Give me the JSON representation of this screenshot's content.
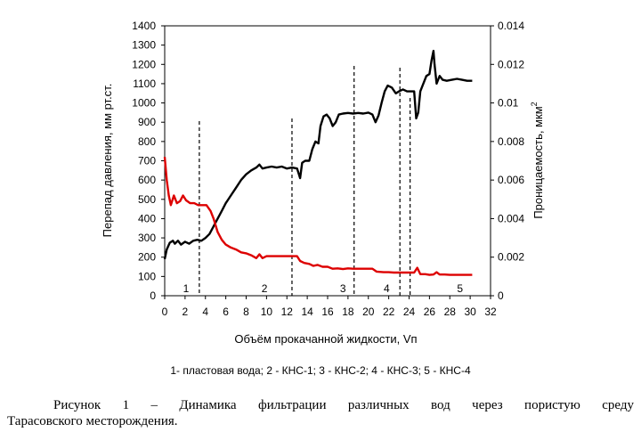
{
  "chart_data": {
    "type": "line",
    "xlabel": "Объём прокачанной жидкости, Vп",
    "ylabel_left": "Перепад давления, мм рт.ст.",
    "ylabel_right": "Проницаемость, мкм",
    "ylabel_right_superscript": "2",
    "xlim": [
      0,
      32
    ],
    "ylim_left": [
      0,
      1400
    ],
    "ylim_right": [
      0,
      0.014
    ],
    "x_ticks": [
      "0",
      "2",
      "4",
      "6",
      "8",
      "10",
      "12",
      "14",
      "16",
      "18",
      "20",
      "22",
      "24",
      "26",
      "28",
      "30",
      "32"
    ],
    "y_left_ticks": [
      "0",
      "100",
      "200",
      "300",
      "400",
      "500",
      "600",
      "700",
      "800",
      "900",
      "1000",
      "1100",
      "1200",
      "1300",
      "1400"
    ],
    "y_right_ticks": [
      "0",
      "0.002",
      "0.004",
      "0.006",
      "0.008",
      "0.01",
      "0.012",
      "0.014"
    ],
    "grid": false,
    "series": [
      {
        "axis": "left",
        "color": "#000000",
        "points": [
          [
            0,
            190
          ],
          [
            0.2,
            240
          ],
          [
            0.5,
            275
          ],
          [
            0.8,
            285
          ],
          [
            1.0,
            270
          ],
          [
            1.3,
            285
          ],
          [
            1.6,
            265
          ],
          [
            2.0,
            280
          ],
          [
            2.4,
            270
          ],
          [
            2.8,
            285
          ],
          [
            3.2,
            290
          ],
          [
            3.6,
            285
          ],
          [
            4.0,
            300
          ],
          [
            4.4,
            320
          ],
          [
            4.8,
            360
          ],
          [
            5.2,
            400
          ],
          [
            5.6,
            440
          ],
          [
            6.0,
            480
          ],
          [
            6.5,
            520
          ],
          [
            7.0,
            560
          ],
          [
            7.5,
            600
          ],
          [
            8.0,
            630
          ],
          [
            8.5,
            650
          ],
          [
            9.0,
            665
          ],
          [
            9.3,
            680
          ],
          [
            9.6,
            660
          ],
          [
            10.0,
            665
          ],
          [
            10.5,
            670
          ],
          [
            11.0,
            665
          ],
          [
            11.5,
            670
          ],
          [
            12.0,
            660
          ],
          [
            12.5,
            665
          ],
          [
            13.0,
            660
          ],
          [
            13.3,
            610
          ],
          [
            13.5,
            690
          ],
          [
            13.8,
            700
          ],
          [
            14.2,
            700
          ],
          [
            14.5,
            760
          ],
          [
            14.8,
            800
          ],
          [
            15.1,
            790
          ],
          [
            15.3,
            880
          ],
          [
            15.6,
            930
          ],
          [
            15.9,
            940
          ],
          [
            16.2,
            920
          ],
          [
            16.5,
            880
          ],
          [
            16.8,
            900
          ],
          [
            17.1,
            940
          ],
          [
            17.5,
            945
          ],
          [
            18.0,
            948
          ],
          [
            18.5,
            945
          ],
          [
            19.0,
            948
          ],
          [
            19.5,
            945
          ],
          [
            20.0,
            950
          ],
          [
            20.4,
            940
          ],
          [
            20.7,
            900
          ],
          [
            21.0,
            935
          ],
          [
            21.3,
            1000
          ],
          [
            21.6,
            1060
          ],
          [
            21.9,
            1090
          ],
          [
            22.3,
            1080
          ],
          [
            22.7,
            1050
          ],
          [
            23.0,
            1060
          ],
          [
            23.4,
            1070
          ],
          [
            23.8,
            1060
          ],
          [
            24.2,
            1060
          ],
          [
            24.5,
            1060
          ],
          [
            24.7,
            920
          ],
          [
            24.9,
            950
          ],
          [
            25.1,
            1060
          ],
          [
            25.4,
            1100
          ],
          [
            25.7,
            1140
          ],
          [
            26.0,
            1150
          ],
          [
            26.2,
            1220
          ],
          [
            26.4,
            1270
          ],
          [
            26.5,
            1200
          ],
          [
            26.7,
            1100
          ],
          [
            27.0,
            1140
          ],
          [
            27.3,
            1120
          ],
          [
            27.7,
            1115
          ],
          [
            28.2,
            1120
          ],
          [
            28.7,
            1125
          ],
          [
            29.2,
            1120
          ],
          [
            29.7,
            1115
          ],
          [
            30.2,
            1115
          ]
        ]
      },
      {
        "axis": "left",
        "color": "#dd0000",
        "points": [
          [
            0,
            720
          ],
          [
            0.2,
            600
          ],
          [
            0.4,
            520
          ],
          [
            0.6,
            470
          ],
          [
            0.9,
            520
          ],
          [
            1.2,
            480
          ],
          [
            1.5,
            490
          ],
          [
            1.8,
            520
          ],
          [
            2.1,
            495
          ],
          [
            2.5,
            480
          ],
          [
            2.9,
            480
          ],
          [
            3.3,
            470
          ],
          [
            3.7,
            470
          ],
          [
            4.1,
            470
          ],
          [
            4.5,
            440
          ],
          [
            4.8,
            400
          ],
          [
            5.2,
            330
          ],
          [
            5.6,
            290
          ],
          [
            6.0,
            265
          ],
          [
            6.5,
            250
          ],
          [
            7.0,
            240
          ],
          [
            7.5,
            225
          ],
          [
            8.0,
            220
          ],
          [
            8.5,
            210
          ],
          [
            9.0,
            195
          ],
          [
            9.3,
            215
          ],
          [
            9.6,
            195
          ],
          [
            10.0,
            205
          ],
          [
            10.5,
            205
          ],
          [
            11.0,
            205
          ],
          [
            11.5,
            205
          ],
          [
            12.0,
            205
          ],
          [
            12.5,
            205
          ],
          [
            13.0,
            205
          ],
          [
            13.3,
            180
          ],
          [
            13.7,
            170
          ],
          [
            14.2,
            165
          ],
          [
            14.6,
            155
          ],
          [
            15.0,
            160
          ],
          [
            15.5,
            150
          ],
          [
            16.0,
            150
          ],
          [
            16.5,
            140
          ],
          [
            17.0,
            142
          ],
          [
            17.5,
            138
          ],
          [
            18.0,
            142
          ],
          [
            18.5,
            140
          ],
          [
            19.0,
            140
          ],
          [
            19.5,
            140
          ],
          [
            20.0,
            140
          ],
          [
            20.4,
            140
          ],
          [
            20.8,
            125
          ],
          [
            21.5,
            122
          ],
          [
            22.0,
            122
          ],
          [
            22.5,
            120
          ],
          [
            23.0,
            120
          ],
          [
            23.5,
            120
          ],
          [
            24.0,
            120
          ],
          [
            24.5,
            120
          ],
          [
            24.8,
            145
          ],
          [
            25.1,
            112
          ],
          [
            25.6,
            112
          ],
          [
            26.0,
            108
          ],
          [
            26.4,
            110
          ],
          [
            26.7,
            122
          ],
          [
            27.0,
            110
          ],
          [
            27.5,
            110
          ],
          [
            28.0,
            108
          ],
          [
            28.5,
            108
          ],
          [
            29.0,
            108
          ],
          [
            29.5,
            108
          ],
          [
            30.2,
            108
          ]
        ]
      }
    ],
    "stage_boundaries_x": [
      3.4,
      12.5,
      18.6,
      23.1,
      24.1
    ],
    "stage_labels": [
      {
        "label": "1",
        "x": 2.1
      },
      {
        "label": "2",
        "x": 9.8
      },
      {
        "label": "3",
        "x": 17.5
      },
      {
        "label": "4",
        "x": 21.8
      },
      {
        "label": "5",
        "x": 29.0
      }
    ]
  },
  "legend_text": "1-  пластовая вода;  2 -  КНС-1;  3 - КНС-2;  4 - КНС-3;  5 - КНС-4",
  "caption": {
    "line1": "Рисунок  1  –  Динамика  фильтрации  различных  вод  через  пористую  среду",
    "line2": "Тарасовского месторождения."
  }
}
